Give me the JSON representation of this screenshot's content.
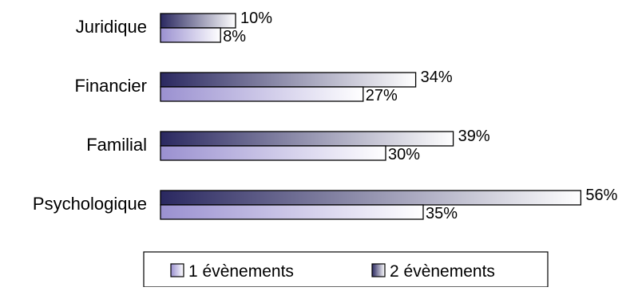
{
  "chart_data": {
    "type": "bar",
    "orientation": "horizontal",
    "categories": [
      "Juridique",
      "Financier",
      "Familial",
      "Psychologique"
    ],
    "series": [
      {
        "name": "1 évènements",
        "values": [
          8,
          27,
          30,
          35
        ],
        "value_labels": [
          "8%",
          "27%",
          "30%",
          "35%"
        ]
      },
      {
        "name": "2 évènements",
        "values": [
          10,
          34,
          39,
          56
        ],
        "value_labels": [
          "10%",
          "34%",
          "39%",
          "56%"
        ]
      }
    ],
    "xlim": [
      0,
      100
    ],
    "grid": false,
    "legend_position": "bottom",
    "colors": {
      "series1_start": "#9a90d0",
      "series1_end": "#ffffff",
      "series2_start": "#2a2860",
      "series2_end": "#ffffff",
      "outline": "#000000"
    }
  }
}
